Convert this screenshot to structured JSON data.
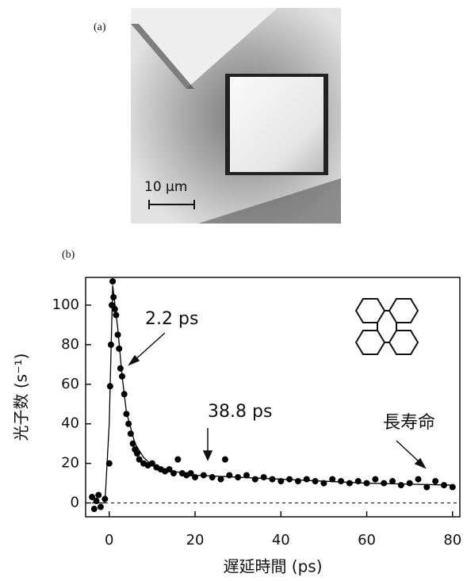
{
  "panel_a": {
    "label": "(a)",
    "scale_bar": "10 µm"
  },
  "chart_data": {
    "type": "scatter",
    "label": "(b)",
    "xlabel": "遅延時間 (ps)",
    "ylabel": "光子数 (s⁻¹)",
    "annotations": [
      "2.2 ps",
      "38.8 ps",
      "長寿命"
    ],
    "xlim": [
      -5.5,
      81.7
    ],
    "ylim": [
      -7,
      114
    ],
    "xticks": [
      0,
      20,
      40,
      60,
      80
    ],
    "yticks": [
      0,
      20,
      40,
      60,
      80,
      100
    ],
    "hline": 0,
    "series": [
      {
        "color": "#000000",
        "x": [
          -4,
          -3,
          -2,
          -1,
          -3.5,
          -2.5,
          0,
          0.2,
          0.4,
          0.6,
          0.8,
          1,
          1.3,
          1.6,
          2,
          2.3,
          2.6,
          3,
          3.5,
          4,
          4.5,
          5,
          5.5,
          6,
          6.5,
          7,
          8,
          9,
          10,
          11,
          12,
          13,
          14,
          15,
          16,
          17,
          18,
          19,
          20,
          22,
          24,
          26,
          27,
          28,
          30,
          32,
          34,
          36,
          38,
          40,
          42,
          44,
          46,
          48,
          50,
          52,
          54,
          56,
          58,
          60,
          62,
          64,
          66,
          68,
          70,
          72,
          74,
          76,
          78,
          80
        ],
        "values": [
          3,
          1,
          -2,
          2,
          -3,
          4,
          20,
          59,
          80,
          100,
          112,
          104,
          98,
          95,
          85,
          78,
          68,
          64,
          55,
          45,
          40,
          35,
          30,
          27,
          25,
          22,
          20,
          19,
          20,
          18,
          17,
          16,
          17,
          15,
          22,
          15,
          14,
          15,
          13,
          14,
          13,
          12,
          22,
          14,
          13,
          14,
          12,
          13,
          12,
          11,
          12,
          11,
          12,
          11,
          10,
          12,
          11,
          10,
          11,
          10,
          12,
          10,
          11,
          9,
          10,
          12,
          8,
          11,
          9,
          8
        ]
      },
      {
        "color": "#000000",
        "style": "line",
        "x": [
          -4,
          -1,
          0,
          0.8,
          2,
          3,
          4,
          6,
          8,
          10,
          15,
          20,
          30,
          40,
          60,
          80
        ],
        "values": [
          0,
          0,
          40,
          110,
          88,
          64,
          46,
          30,
          23,
          19,
          16,
          14,
          13,
          12,
          10,
          9
        ]
      }
    ]
  }
}
